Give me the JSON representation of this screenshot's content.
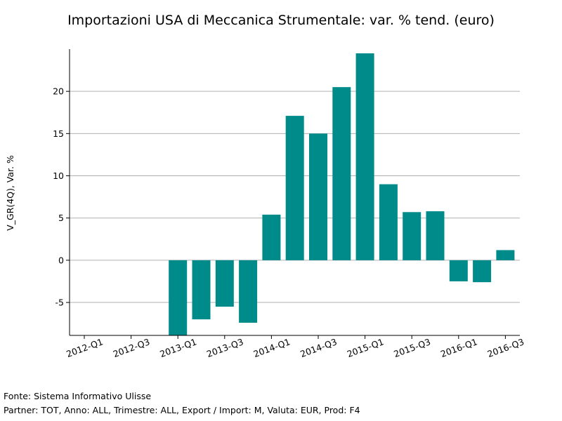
{
  "chart_data": {
    "type": "bar",
    "title": "Importazioni USA di Meccanica Strumentale: var. % tend. (euro)",
    "xlabel": "",
    "ylabel": "V_GR(4Q), Var. %",
    "categories": [
      "2012-Q1",
      "2012-Q2",
      "2012-Q3",
      "2012-Q4",
      "2013-Q1",
      "2013-Q2",
      "2013-Q3",
      "2013-Q4",
      "2014-Q1",
      "2014-Q2",
      "2014-Q3",
      "2014-Q4",
      "2015-Q1",
      "2015-Q2",
      "2015-Q3",
      "2015-Q4",
      "2016-Q1",
      "2016-Q2",
      "2016-Q3"
    ],
    "values": [
      null,
      null,
      null,
      null,
      -8.9,
      -7.0,
      -5.5,
      -7.4,
      5.4,
      17.1,
      15.0,
      20.5,
      24.5,
      9.0,
      5.7,
      5.8,
      -2.5,
      -2.6,
      1.2
    ],
    "x_tick_labels": [
      "2012-Q1",
      "2012-Q3",
      "2013-Q1",
      "2013-Q3",
      "2014-Q1",
      "2014-Q3",
      "2015-Q1",
      "2015-Q3",
      "2016-Q1",
      "2016-Q3"
    ],
    "y_ticks": [
      -5,
      0,
      5,
      10,
      15,
      20
    ],
    "y_tick_labels": [
      "-5",
      "0",
      "5",
      "10",
      "15",
      "20"
    ],
    "ylim": [
      -8.9,
      25
    ],
    "grid": true,
    "legend": "none",
    "bar_color": "#008b8b"
  },
  "footer": {
    "source": "Fonte: Sistema Informativo Ulisse",
    "params": "Partner: TOT, Anno: ALL, Trimestre: ALL, Export / Import: M, Valuta: EUR, Prod: F4"
  }
}
